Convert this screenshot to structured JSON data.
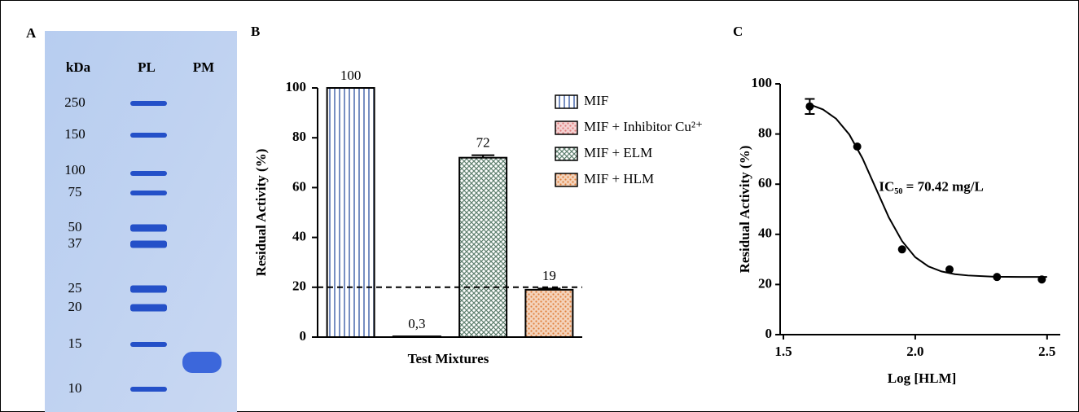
{
  "gel": {
    "panel_label": "A",
    "columns": [
      "kDa",
      "PL",
      "PM"
    ],
    "markers": [
      250,
      150,
      100,
      75,
      50,
      37,
      25,
      20,
      15,
      10
    ]
  },
  "chart_data": [
    {
      "type": "bar",
      "panel_label": "B",
      "y_label": "Residual Activity (%)",
      "x_label": "Test Mixtures",
      "series": [
        {
          "name": "MIF",
          "color": "#3d5fa8",
          "values": [
            100
          ],
          "value_labels": [
            "100"
          ]
        },
        {
          "name": "MIF + Inhibitor Cu²⁺",
          "color": "#e07a7a",
          "values": [
            0.3
          ],
          "value_labels": [
            "0,3"
          ]
        },
        {
          "name": "MIF + ELM",
          "color": "#5e7f6e",
          "values": [
            72
          ],
          "value_labels": [
            "72"
          ],
          "errors": [
            1
          ]
        },
        {
          "name": "MIF + HLM",
          "color": "#e0803c",
          "values": [
            19
          ],
          "value_labels": [
            "19"
          ],
          "errors": [
            0.5
          ]
        }
      ],
      "reference_line": 20,
      "ylim": [
        0,
        100
      ],
      "yticks": [
        0,
        20,
        40,
        60,
        80,
        100
      ],
      "legend": "upper right"
    },
    {
      "type": "scatter",
      "panel_label": "C",
      "y_label": "Residual Activity (%)",
      "x_label": "Log [HLM]",
      "color": "#000000",
      "x": [
        1.6,
        1.78,
        1.95,
        2.13,
        2.31,
        2.48
      ],
      "values": [
        91,
        75,
        34,
        26,
        23,
        22
      ],
      "errors": [
        3,
        null,
        null,
        null,
        null,
        null
      ],
      "curve": {
        "x": [
          1.6,
          1.65,
          1.7,
          1.75,
          1.8,
          1.85,
          1.9,
          1.95,
          2.0,
          2.05,
          2.1,
          2.15,
          2.2,
          2.3,
          2.4,
          2.5
        ],
        "values": [
          91.8,
          89.8,
          86.1,
          79.8,
          70.3,
          58.5,
          46.7,
          37.3,
          30.9,
          27.2,
          25.2,
          24.1,
          23.6,
          23.1,
          23.0,
          23.0
        ]
      },
      "annotation": {
        "text": "IC₅₀ = 70.42 mg/L",
        "x": 1.85,
        "y": 58.5
      },
      "xlim": [
        1.5,
        2.55
      ],
      "ylim": [
        0,
        100
      ],
      "xticks": [
        {
          "value": 1.5,
          "label": "1.5"
        },
        {
          "value": 2.0,
          "label": "2.0"
        },
        {
          "value": 2.5,
          "label": "2.5"
        }
      ],
      "yticks": [
        0,
        20,
        40,
        60,
        80,
        100
      ]
    }
  ]
}
